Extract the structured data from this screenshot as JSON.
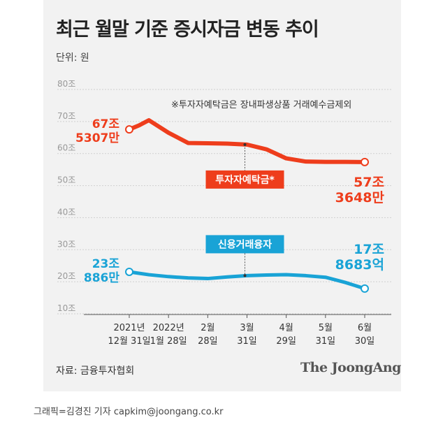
{
  "title": "최근 월말 기준 증시자금 변동 추이",
  "unit": "단위: 원",
  "note": "※투자자예탁금은 장내파생상품 거래예수금제외",
  "source": "자료: 금융투자협회",
  "logo": "The JoongAng",
  "credit": "그래픽=김경진 기자 capkim@joongang.co.kr",
  "colors": {
    "deposits": "#ee3d1c",
    "credit": "#19a3d6",
    "grid": "#cfcfcf",
    "background": "#f2f2f2"
  },
  "chart_data": {
    "type": "line",
    "title": "최근 월말 기준 증시자금 변동 추이",
    "ylabel": "단위: 원",
    "ylim": [
      10,
      80
    ],
    "yticks": [
      {
        "value": 80,
        "label": "80조"
      },
      {
        "value": 70,
        "label": "70조"
      },
      {
        "value": 60,
        "label": "60조"
      },
      {
        "value": 50,
        "label": "50조"
      },
      {
        "value": 40,
        "label": "40조"
      },
      {
        "value": 30,
        "label": "30조"
      },
      {
        "value": 20,
        "label": "20조"
      },
      {
        "value": 10,
        "label": "10조"
      }
    ],
    "grid": true,
    "categories": [
      {
        "line1": "2021년",
        "line2": "12월 31일"
      },
      {
        "line1": "2022년",
        "line2": "1월 28일"
      },
      {
        "line1": "2월",
        "line2": "28일"
      },
      {
        "line1": "3월",
        "line2": "31일"
      },
      {
        "line1": "4월",
        "line2": "29일"
      },
      {
        "line1": "5월",
        "line2": "31일"
      },
      {
        "line1": "6월",
        "line2": "30일"
      }
    ],
    "series": [
      {
        "name": "투자자예탁금*",
        "color": "#ee3d1c",
        "x": [
          0,
          0.25,
          0.5,
          1,
          1.5,
          2,
          2.5,
          3,
          3.5,
          4,
          4.5,
          5,
          5.5,
          6
        ],
        "values": [
          67.53,
          68.8,
          70.4,
          66.5,
          63.3,
          63.2,
          63.1,
          62.8,
          61.3,
          58.5,
          57.5,
          57.4,
          57.4,
          57.36
        ],
        "start_label": [
          "67조",
          "5307만"
        ],
        "end_label": [
          "57조",
          "3648만"
        ],
        "legend_x": 3
      },
      {
        "name": "신용거래융자",
        "color": "#19a3d6",
        "x": [
          0,
          0.5,
          1,
          1.5,
          2,
          2.5,
          3,
          3.5,
          4,
          4.5,
          5,
          5.5,
          6
        ],
        "values": [
          23.09,
          22.2,
          21.6,
          21.2,
          21.0,
          21.5,
          21.9,
          22.1,
          22.2,
          21.9,
          21.4,
          19.8,
          17.87
        ],
        "start_label": [
          "23조",
          "886만"
        ],
        "end_label": [
          "17조",
          "8683억"
        ],
        "legend_x": 3
      }
    ]
  }
}
